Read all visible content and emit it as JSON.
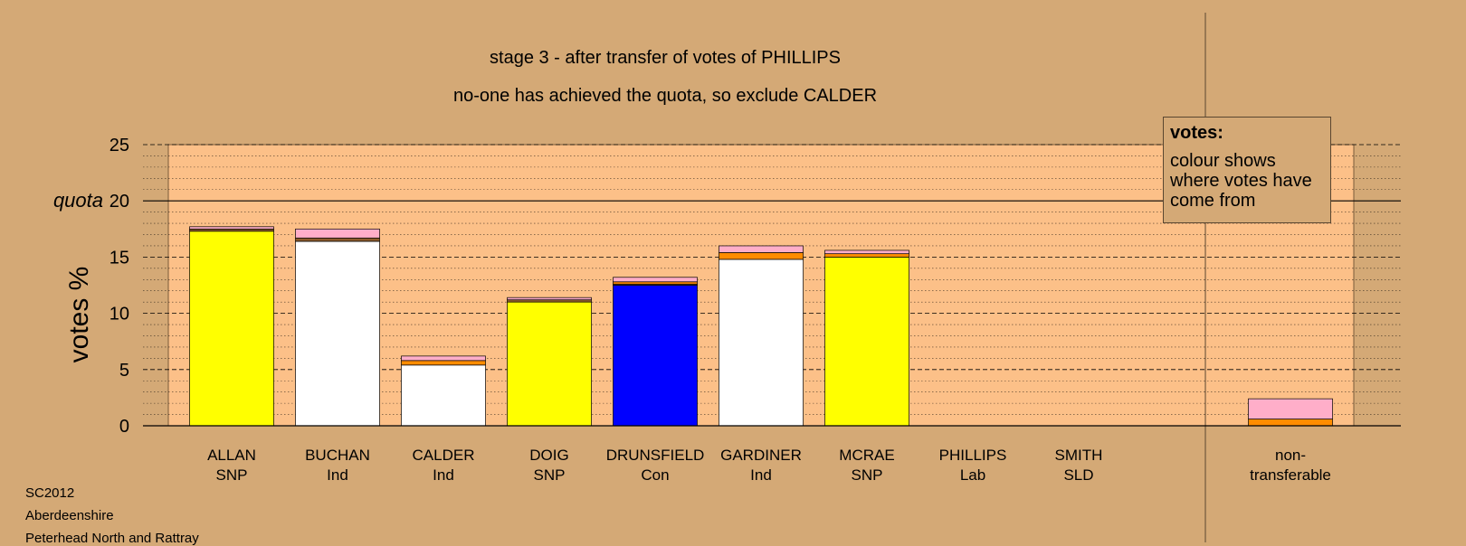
{
  "footer": {
    "election": "SC2012",
    "council": "Aberdeenshire",
    "ward": "Peterhead North and Rattray"
  },
  "legend": {
    "title": "votes:",
    "body": "colour shows where votes have come from"
  },
  "colors": {
    "background": "#d4a976",
    "plot_area": "#fcc088",
    "SNP": "#ffff00",
    "Ind": "#ffffff",
    "Con": "#0000ff",
    "Lab": "#ffaec9",
    "SLD": "#ff8c00",
    "from_others": "#8b5a2b"
  },
  "chart_data": {
    "type": "bar",
    "stacked": true,
    "title": "stage 3 - after transfer of votes of PHILLIPS",
    "subtitle": "no-one has achieved the quota, so exclude CALDER",
    "ylabel": "votes %",
    "ylim": [
      0,
      25
    ],
    "yticks": [
      0,
      5,
      10,
      15,
      20,
      25
    ],
    "ytick_labels": [
      "0",
      "5",
      "10",
      "15",
      "20",
      "25"
    ],
    "quota": 20,
    "quota_label": "quota",
    "grid": true,
    "legend_position": "top-right",
    "categories": [
      {
        "name": "ALLAN",
        "party": "SNP"
      },
      {
        "name": "BUCHAN",
        "party": "Ind"
      },
      {
        "name": "CALDER",
        "party": "Ind"
      },
      {
        "name": "DOIG",
        "party": "SNP"
      },
      {
        "name": "DRUNSFIELD",
        "party": "Con"
      },
      {
        "name": "GARDINER",
        "party": "Ind"
      },
      {
        "name": "MCRAE",
        "party": "SNP"
      },
      {
        "name": "PHILLIPS",
        "party": "Lab"
      },
      {
        "name": "SMITH",
        "party": "SLD"
      },
      {
        "name": "non-",
        "party": "transferable"
      }
    ],
    "series": [
      {
        "color_key": "own",
        "values": [
          17.3,
          16.4,
          5.4,
          11.0,
          12.5,
          14.8,
          15.0,
          0,
          0,
          0
        ]
      },
      {
        "color_key": "from_others",
        "values": [
          0.2,
          0.3,
          0.0,
          0.2,
          0.1,
          0.0,
          0.0,
          0,
          0,
          0
        ]
      },
      {
        "color_key": "SLD",
        "values": [
          0.0,
          0.0,
          0.4,
          0.0,
          0.2,
          0.6,
          0.3,
          0,
          0,
          0.6
        ]
      },
      {
        "color_key": "Lab",
        "values": [
          0.2,
          0.8,
          0.4,
          0.2,
          0.4,
          0.6,
          0.3,
          0,
          0,
          1.8
        ]
      }
    ]
  }
}
